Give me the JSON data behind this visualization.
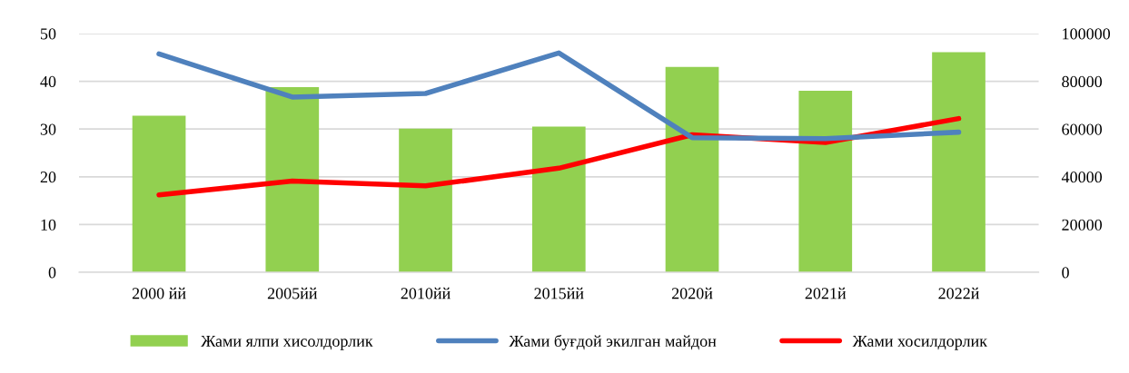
{
  "chart_data": {
    "type": "bar",
    "categories": [
      "2000 йй",
      "2005йй",
      "2010йй",
      "2015йй",
      "2020й",
      "2021й",
      "2022й"
    ],
    "series": [
      {
        "name": "Жами ялпи хисолдорлик",
        "color": "#92d050",
        "values": [
          32.8,
          38.8,
          30.1,
          30.5,
          43.0,
          38.0,
          46.1
        ]
      },
      {
        "name": "Жами буғдой экилган майдон",
        "type": "line",
        "axis": "y2",
        "color": "#4f81bd",
        "values": [
          91500,
          73400,
          74900,
          91900,
          56400,
          56000,
          58700
        ]
      },
      {
        "name": "Жами хосилдорлик",
        "type": "line",
        "color": "#ff0000",
        "values": [
          16.2,
          19.1,
          18.1,
          21.8,
          28.8,
          27.2,
          32.2
        ]
      }
    ],
    "ylim": [
      0,
      50
    ],
    "yticks": [
      0,
      10,
      20,
      30,
      40,
      50
    ],
    "y2lim": [
      0,
      100000
    ],
    "y2ticks": [
      0,
      20000,
      40000,
      60000,
      80000,
      100000
    ],
    "grid": "y",
    "legend": "bottom",
    "marker": "none",
    "line_style": "solid"
  }
}
